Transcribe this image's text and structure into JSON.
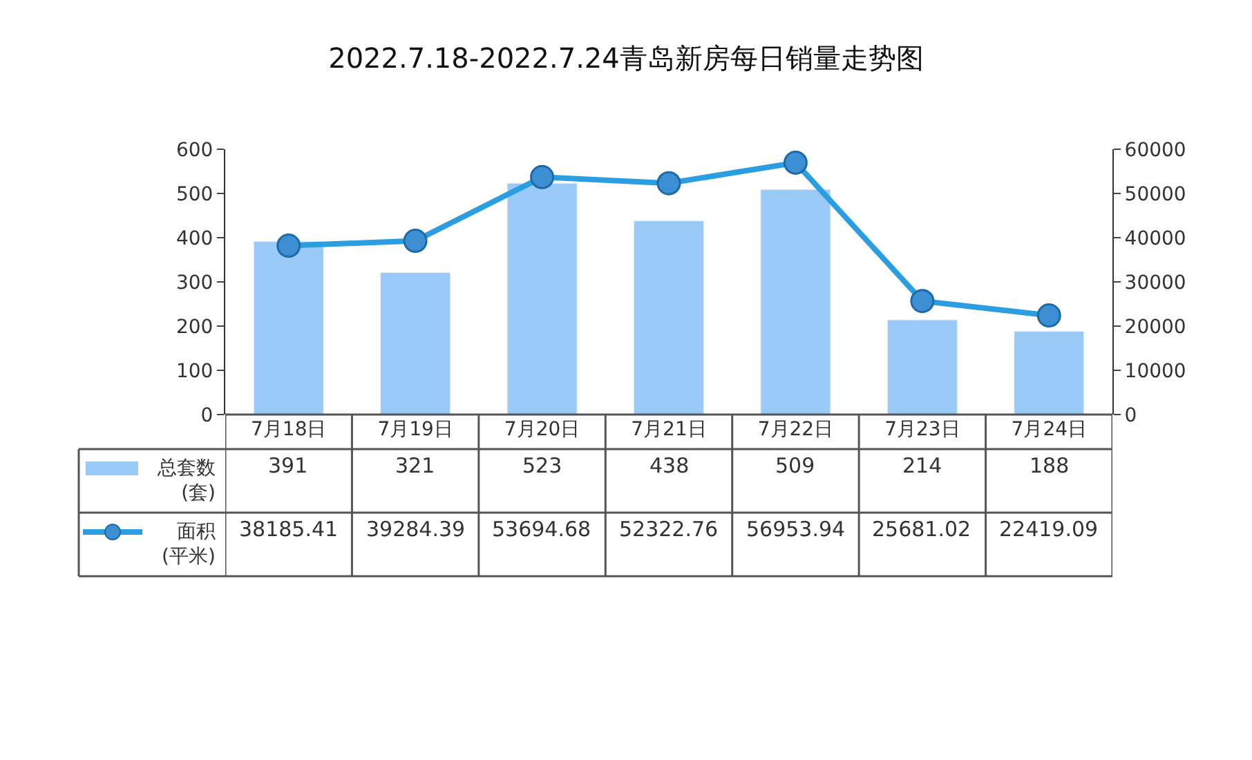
{
  "chart_data": {
    "type": "bar",
    "title": "2022.7.18-2022.7.24青岛新房每日销量走势图",
    "categories": [
      "7月18日",
      "7月19日",
      "7月20日",
      "7月21日",
      "7月22日",
      "7月23日",
      "7月24日"
    ],
    "series": [
      {
        "name": "总套数\n(套)",
        "color": "#99c9f7",
        "values": [
          391,
          321,
          523,
          438,
          509,
          214,
          188
        ]
      },
      {
        "name": "面积\n(平米)",
        "type": "line",
        "axis": "y2",
        "color": "#2a9ee0",
        "marker": "circle",
        "values": [
          38185.41,
          39284.39,
          53694.68,
          52322.76,
          56953.94,
          25681.02,
          22419.09
        ]
      }
    ],
    "ylim": [
      0,
      600
    ],
    "yticks": [
      0,
      100,
      200,
      300,
      400,
      500,
      600
    ],
    "y2lim": [
      0,
      60000
    ],
    "y2ticks": [
      0,
      10000,
      20000,
      30000,
      40000,
      50000,
      60000
    ],
    "legend": "bottom left",
    "data_labels": true
  }
}
